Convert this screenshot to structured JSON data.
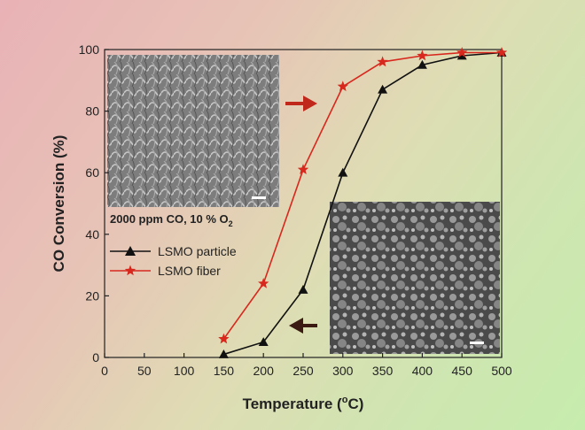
{
  "chart_data": {
    "type": "line",
    "xlabel": "Temperature (",
    "xlabel_sup": "o",
    "xlabel_unit": "C)",
    "ylabel": "CO Conversion (%)",
    "xlim": [
      0,
      500
    ],
    "ylim": [
      0,
      100
    ],
    "x_ticks": [
      "0",
      "50",
      "100",
      "150",
      "200",
      "250",
      "300",
      "350",
      "400",
      "450",
      "500"
    ],
    "y_ticks": [
      "0",
      "20",
      "40",
      "60",
      "80",
      "100"
    ],
    "legend_position": "left-middle",
    "series": [
      {
        "name": "LSMO particle",
        "marker": "triangle",
        "color": "#111111",
        "x": [
          150,
          200,
          250,
          300,
          350,
          400,
          450,
          500
        ],
        "values": [
          1,
          5,
          22,
          60,
          87,
          95,
          98,
          99
        ]
      },
      {
        "name": "LSMO fiber",
        "marker": "star",
        "color": "#d8281e",
        "x": [
          150,
          200,
          250,
          300,
          350,
          400,
          450,
          500
        ],
        "values": [
          6,
          24,
          61,
          88,
          96,
          98,
          99,
          99
        ]
      }
    ],
    "annotations": {
      "condition_text": "2000 ppm CO, 10 % O",
      "condition_sub": "2",
      "arrow_fiber_color": "#c0281c",
      "arrow_particle_color": "#3a1a12"
    }
  }
}
